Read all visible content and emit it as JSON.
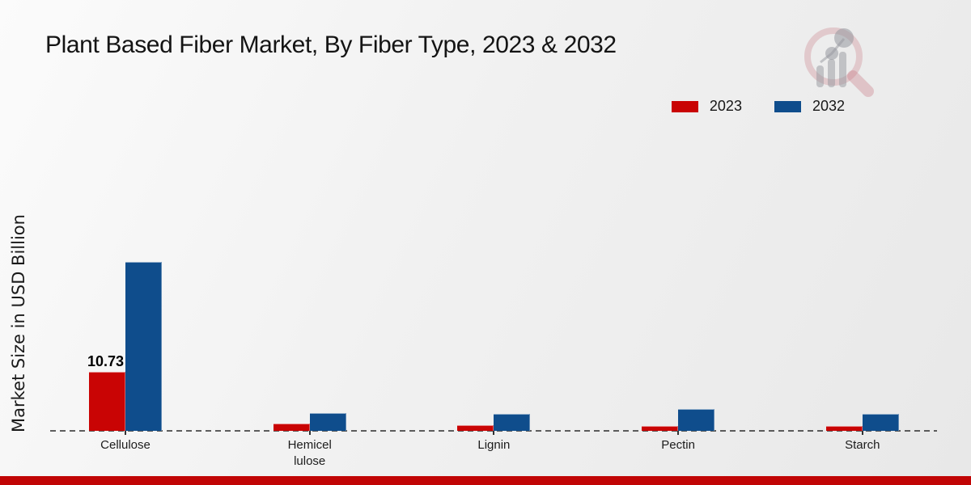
{
  "title": "Plant Based Fiber Market, By Fiber Type, 2023 & 2032",
  "ylabel": "Market Size in USD Billion",
  "legend": {
    "items": [
      {
        "label": "2023",
        "color": "#c90404"
      },
      {
        "label": "2032",
        "color": "#0f4d8c"
      }
    ]
  },
  "watermark": {
    "icon": "market-research-future-logo"
  },
  "footer": {
    "stripe_color": "#c10505"
  },
  "chart_data": {
    "type": "bar",
    "title": "Plant Based Fiber Market, By Fiber Type, 2023 & 2032",
    "ylabel": "Market Size in USD Billion",
    "xlabel": "",
    "categories": [
      "Cellulose",
      "Hemicel lulose",
      "Lignin",
      "Pectin",
      "Starch"
    ],
    "series": [
      {
        "name": "2023",
        "color": "#c90404",
        "values": [
          10.73,
          1.3,
          1.1,
          0.95,
          0.95
        ]
      },
      {
        "name": "2032",
        "color": "#0f4d8c",
        "values": [
          30.7,
          3.2,
          3.1,
          3.9,
          3.1
        ]
      }
    ],
    "annotations": [
      {
        "series": "2023",
        "category": "Cellulose",
        "text": "10.73"
      }
    ],
    "ylim": [
      0,
      35
    ],
    "y_axis_ticks_visible": false,
    "grid": false,
    "baseline_style": "dashed",
    "legend_position": "top-right"
  }
}
